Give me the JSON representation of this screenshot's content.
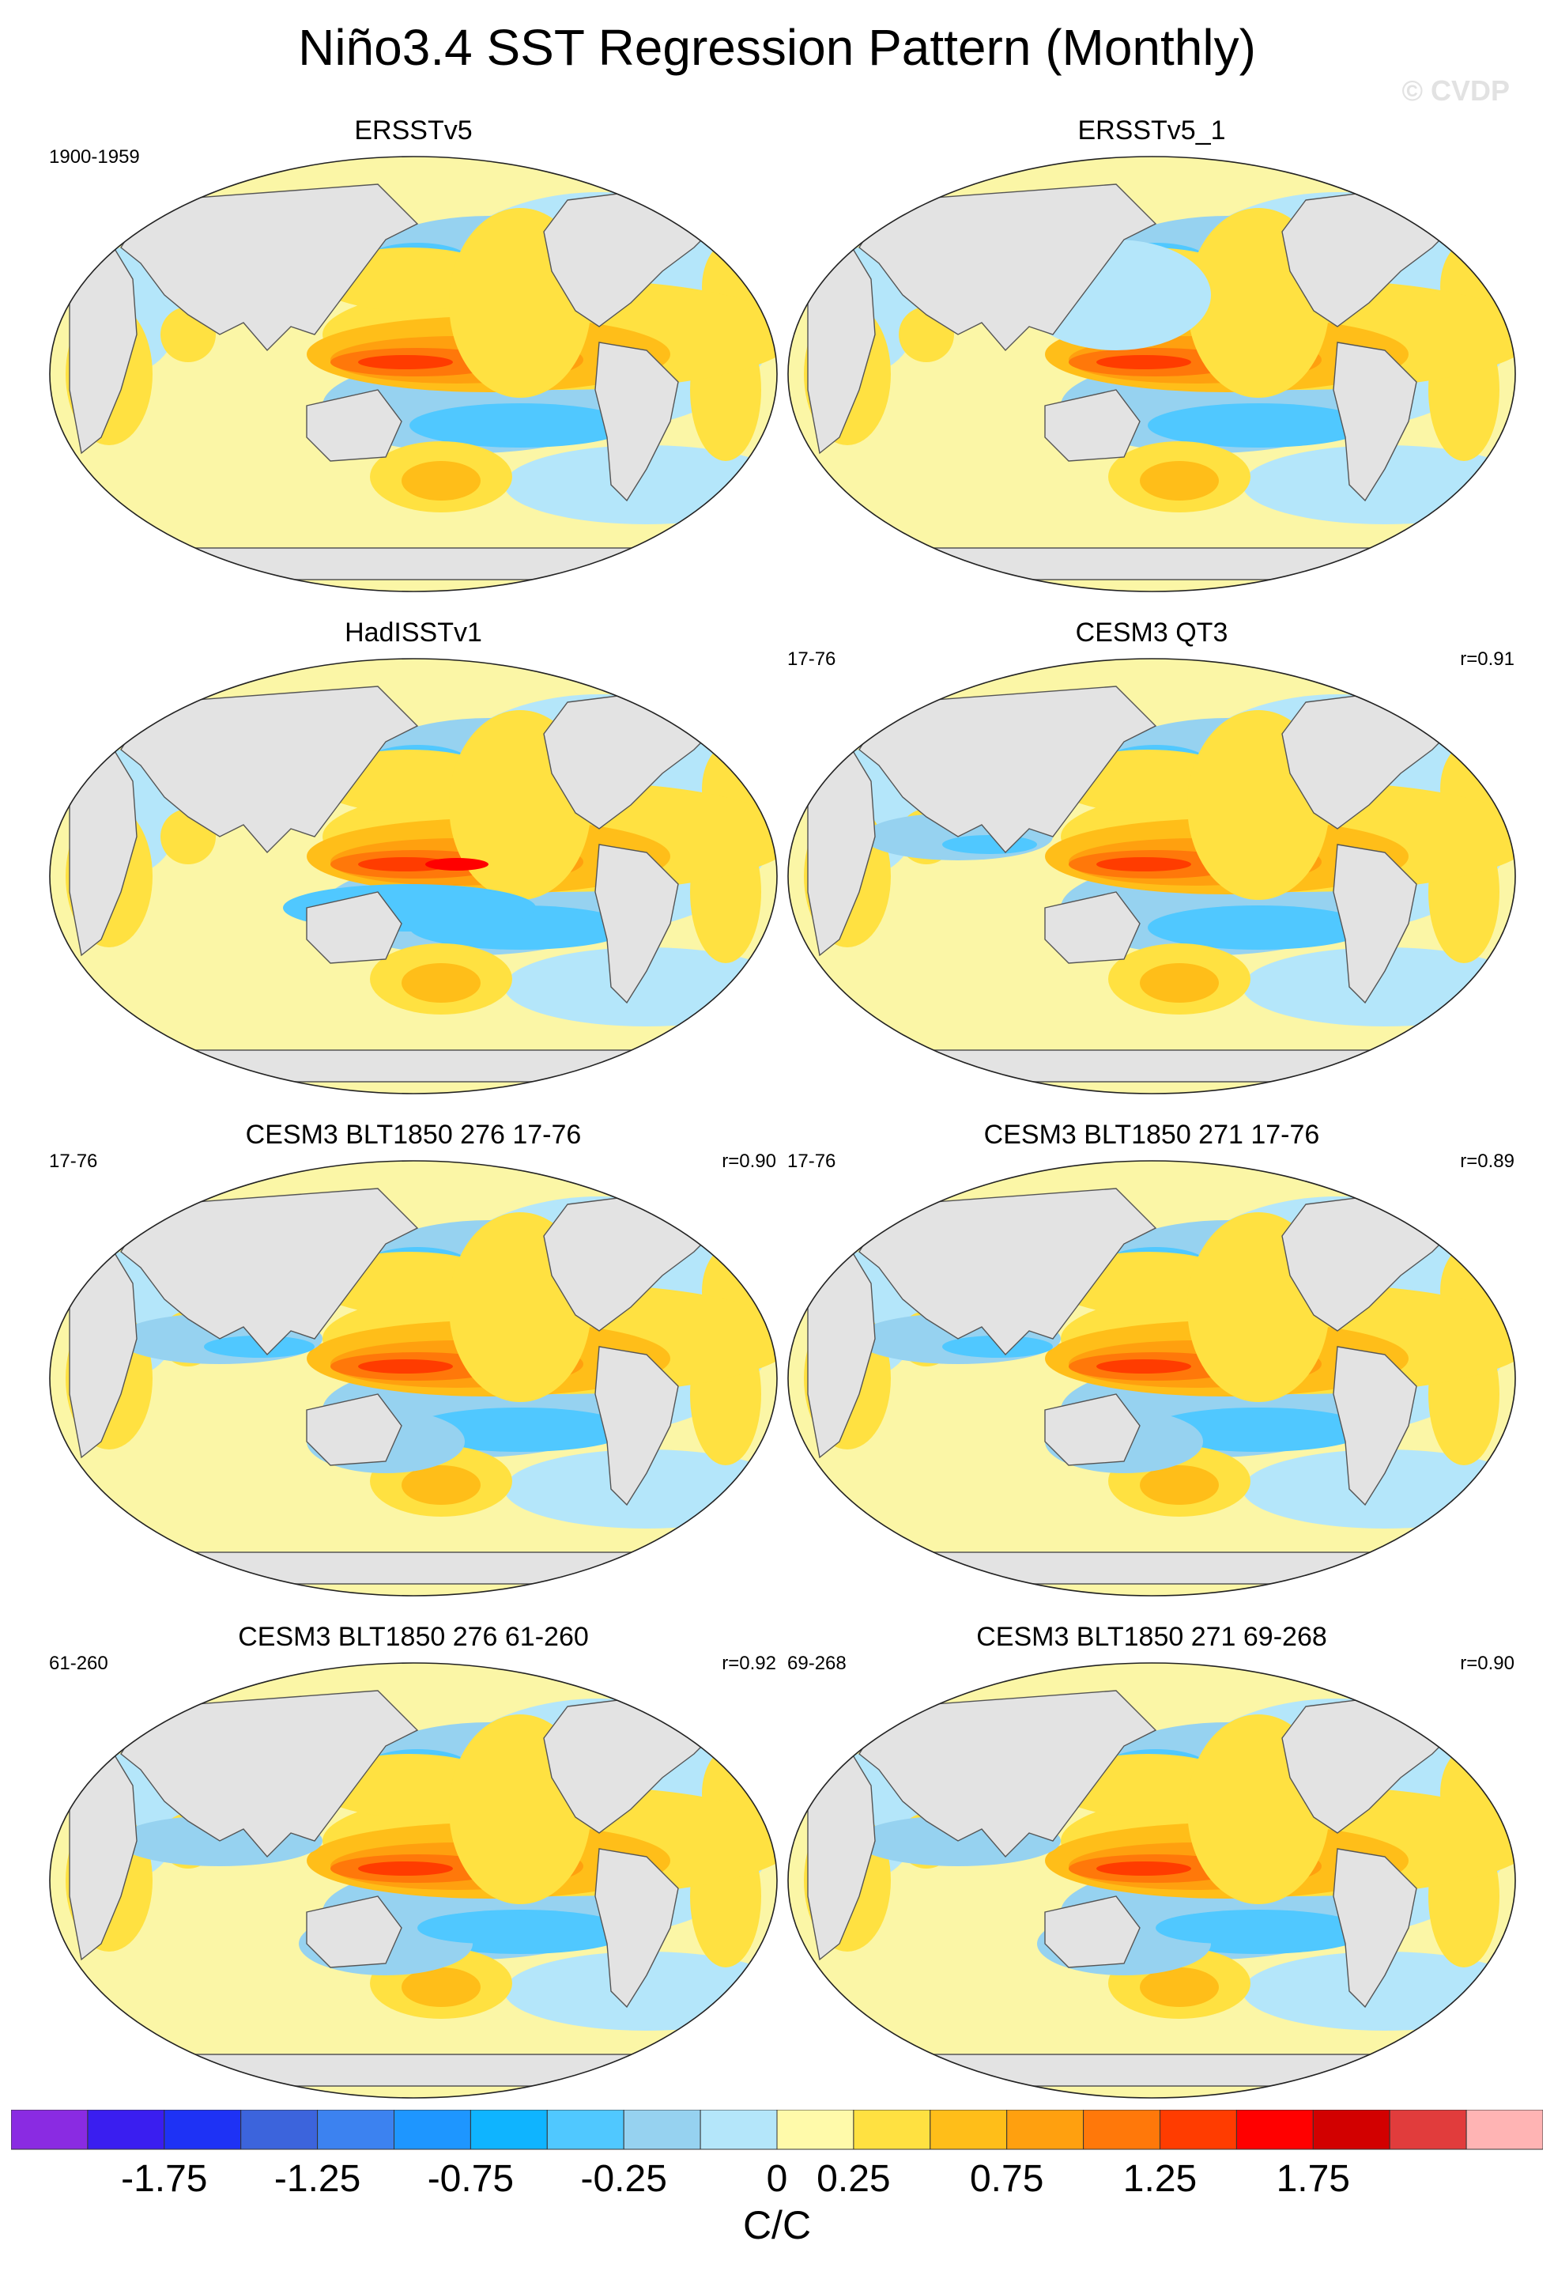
{
  "title": "Niño3.4 SST Regression Pattern (Monthly)",
  "watermark": "© CVDP",
  "map": {
    "projection": "Robinson (Pacific-centered)",
    "land_color": "#e3e3e3",
    "ocean_background": "#fbf6a6"
  },
  "panels": [
    {
      "title": "ERSSTv5",
      "left_label": "1900-1959",
      "right_label": "",
      "variant": "obs_a"
    },
    {
      "title": "ERSSTv5_1",
      "left_label": "",
      "right_label": "",
      "variant": "obs_b"
    },
    {
      "title": "HadISSTv1",
      "left_label": "",
      "right_label": "",
      "variant": "obs_c"
    },
    {
      "title": "CESM3 QT3",
      "left_label": "17-76",
      "right_label": "r=0.91",
      "variant": "model_a"
    },
    {
      "title": "CESM3 BLT1850 276 17-76",
      "left_label": "17-76",
      "right_label": "r=0.90",
      "variant": "model_b"
    },
    {
      "title": "CESM3 BLT1850 271 17-76",
      "left_label": "17-76",
      "right_label": "r=0.89",
      "variant": "model_b"
    },
    {
      "title": "CESM3 BLT1850 276 61-260",
      "left_label": "61-260",
      "right_label": "r=0.92",
      "variant": "model_c"
    },
    {
      "title": "CESM3 BLT1850 271 69-268",
      "left_label": "69-268",
      "right_label": "r=0.90",
      "variant": "model_c"
    }
  ],
  "colorbar": {
    "colors": [
      "#8a2be2",
      "#3a1ef0",
      "#1e32f5",
      "#3c64dc",
      "#3c82f0",
      "#1e96ff",
      "#0fb4ff",
      "#50c8ff",
      "#96d2f0",
      "#b4e6fa",
      "#fffaaa",
      "#ffe141",
      "#ffbe19",
      "#ffa00f",
      "#ff780a",
      "#ff3c00",
      "#ff0000",
      "#d20000",
      "#e13c3c",
      "#ffb4b4"
    ],
    "tick_labels": [
      "-1.75",
      "-1.25",
      "-0.75",
      "-0.25",
      "0",
      "0.25",
      "0.75",
      "1.25",
      "1.75"
    ],
    "tick_boundary_index": [
      2,
      4,
      6,
      8,
      10,
      11,
      13,
      15,
      17
    ],
    "units": "C/C"
  }
}
